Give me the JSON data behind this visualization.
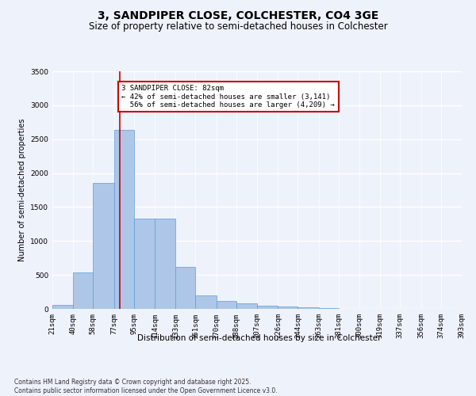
{
  "title": "3, SANDPIPER CLOSE, COLCHESTER, CO4 3GE",
  "subtitle": "Size of property relative to semi-detached houses in Colchester",
  "xlabel": "Distribution of semi-detached houses by size in Colchester",
  "ylabel": "Number of semi-detached properties",
  "footnote1": "Contains HM Land Registry data © Crown copyright and database right 2025.",
  "footnote2": "Contains public sector information licensed under the Open Government Licence v3.0.",
  "property_label": "3 SANDPIPER CLOSE: 82sqm",
  "smaller_pct": "42% of semi-detached houses are smaller (3,141)",
  "larger_pct": "56% of semi-detached houses are larger (4,209)",
  "property_size": 82,
  "bin_edges": [
    21,
    40,
    58,
    77,
    95,
    114,
    133,
    151,
    170,
    188,
    207,
    226,
    244,
    263,
    281,
    300,
    319,
    337,
    356,
    374,
    393
  ],
  "bin_labels": [
    "21sqm",
    "40sqm",
    "58sqm",
    "77sqm",
    "95sqm",
    "114sqm",
    "133sqm",
    "151sqm",
    "170sqm",
    "188sqm",
    "207sqm",
    "226sqm",
    "244sqm",
    "263sqm",
    "281sqm",
    "300sqm",
    "319sqm",
    "337sqm",
    "356sqm",
    "374sqm",
    "393sqm"
  ],
  "bar_values": [
    60,
    540,
    1850,
    2640,
    1330,
    1330,
    620,
    200,
    120,
    80,
    50,
    30,
    20,
    10,
    5,
    2,
    1,
    1,
    0,
    0
  ],
  "bar_color": "#aec6e8",
  "bar_edge_color": "#5a9fd4",
  "vline_color": "#cc0000",
  "vline_x": 82,
  "ylim": [
    0,
    3500
  ],
  "yticks": [
    0,
    500,
    1000,
    1500,
    2000,
    2500,
    3000,
    3500
  ],
  "bg_color": "#eef2fb",
  "grid_color": "#ffffff",
  "annotation_box_color": "#cc0000",
  "title_fontsize": 10,
  "subtitle_fontsize": 8.5,
  "axis_label_fontsize": 7.5,
  "tick_fontsize": 6.5,
  "ylabel_fontsize": 7,
  "footnote_fontsize": 5.5
}
